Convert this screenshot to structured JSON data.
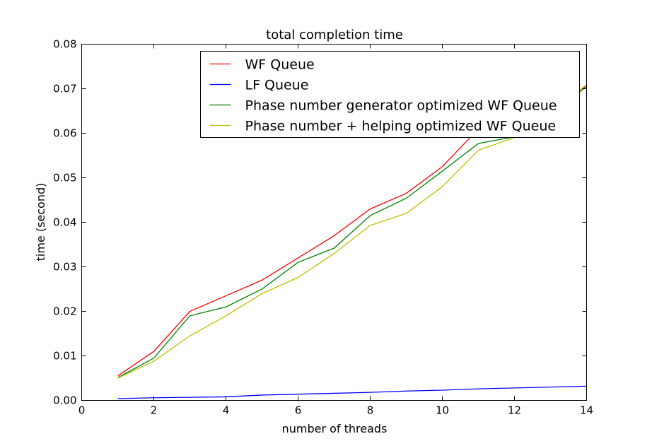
{
  "chart_data": {
    "type": "line",
    "title": "total completion time",
    "xlabel": "number of threads",
    "ylabel": "time (second)",
    "xlim": [
      0,
      14
    ],
    "ylim": [
      0,
      0.08
    ],
    "xticks": [
      0,
      2,
      4,
      6,
      8,
      10,
      12,
      14
    ],
    "yticks": [
      0.0,
      0.01,
      0.02,
      0.03,
      0.04,
      0.05,
      0.06,
      0.07,
      0.08
    ],
    "xtick_labels": [
      "0",
      "2",
      "4",
      "6",
      "8",
      "10",
      "12",
      "14"
    ],
    "ytick_labels": [
      "0.00",
      "0.01",
      "0.02",
      "0.03",
      "0.04",
      "0.05",
      "0.06",
      "0.07",
      "0.08"
    ],
    "grid": false,
    "legend_position": "upper-center",
    "x": [
      1,
      2,
      3,
      4,
      5,
      6,
      7,
      8,
      9,
      10,
      11,
      12,
      13,
      14
    ],
    "series": [
      {
        "name": "WF Queue",
        "color": "#ff0000",
        "values": [
          0.0055,
          0.011,
          0.02,
          0.0235,
          0.027,
          0.032,
          0.037,
          0.043,
          0.0465,
          0.0525,
          0.061,
          0.0625,
          0.0665,
          0.0705
        ]
      },
      {
        "name": "LF Queue",
        "color": "#0000ff",
        "values": [
          0.0004,
          0.0006,
          0.0007,
          0.0008,
          0.0012,
          0.0014,
          0.0016,
          0.0018,
          0.0021,
          0.0023,
          0.0026,
          0.0028,
          0.003,
          0.0032
        ]
      },
      {
        "name": "Phase number generator optimized WF Queue",
        "color": "#008000",
        "values": [
          0.0051,
          0.0095,
          0.019,
          0.021,
          0.025,
          0.031,
          0.0342,
          0.0415,
          0.0454,
          0.0515,
          0.0577,
          0.0592,
          0.064,
          0.0705
        ]
      },
      {
        "name": "Phase number + helping optimized WF Queue",
        "color": "#bfbf00",
        "values": [
          0.005,
          0.0088,
          0.0145,
          0.019,
          0.024,
          0.0276,
          0.033,
          0.0393,
          0.042,
          0.048,
          0.0562,
          0.059,
          0.0635,
          0.071
        ]
      }
    ]
  }
}
